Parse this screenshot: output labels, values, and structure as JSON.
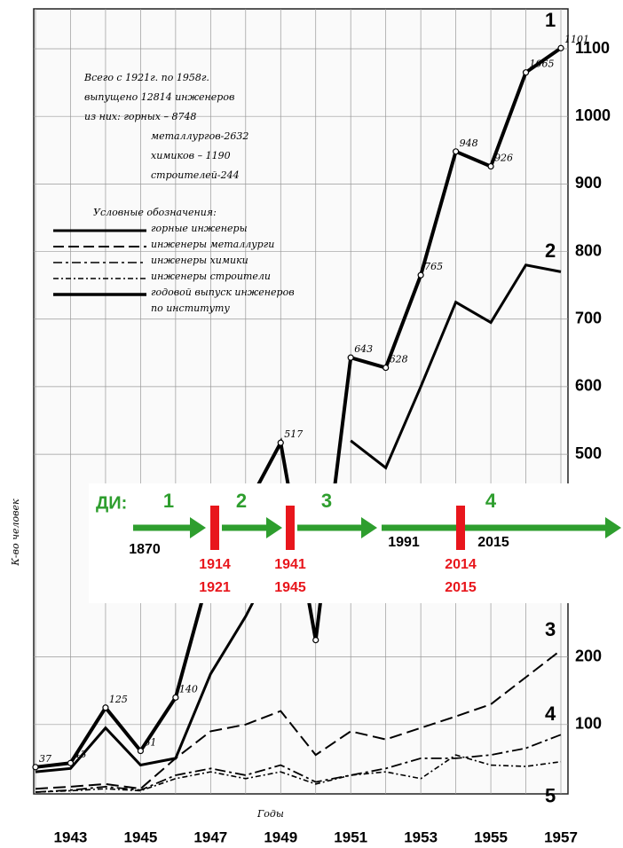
{
  "chart_data": {
    "type": "line",
    "x_label": "Годы",
    "y_label": "К-во человек",
    "x": [
      1942,
      1943,
      1944,
      1945,
      1946,
      1947,
      1948,
      1949,
      1950,
      1951,
      1952,
      1953,
      1954,
      1955,
      1956,
      1957
    ],
    "xlim": [
      1942,
      1957
    ],
    "xticks": [
      1943,
      1945,
      1947,
      1949,
      1951,
      1953,
      1955,
      1957
    ],
    "ylim": [
      0,
      1100
    ],
    "yticks": [
      100,
      200,
      500,
      600,
      700,
      800,
      900,
      1000,
      1100
    ],
    "grid": true,
    "series": [
      {
        "name": "1",
        "color": "#000000",
        "style": "markers",
        "values": [
          37,
          43,
          125,
          61,
          140,
          330,
          420,
          517,
          225,
          643,
          628,
          765,
          948,
          926,
          1065,
          1101
        ],
        "value_labels": [
          "37",
          "43",
          "125",
          "61",
          "140",
          null,
          null,
          "517",
          null,
          "643",
          "628",
          "765",
          "948",
          "926",
          "1065",
          "1101"
        ]
      },
      {
        "name": "2",
        "color": "#000000",
        "style": "solid",
        "values": [
          30,
          35,
          95,
          40,
          50,
          175,
          260,
          360,
          null,
          520,
          480,
          600,
          725,
          695,
          780,
          770
        ]
      },
      {
        "name": "3",
        "color": "#000000",
        "style": "dashed",
        "values": [
          5,
          8,
          12,
          5,
          50,
          90,
          100,
          120,
          55,
          90,
          78,
          95,
          112,
          130,
          170,
          210
        ]
      },
      {
        "name": "4",
        "color": "#000000",
        "style": "dashdot",
        "values": [
          0,
          3,
          8,
          3,
          25,
          35,
          25,
          40,
          15,
          25,
          35,
          50,
          50,
          55,
          65,
          85
        ]
      },
      {
        "name": "5",
        "color": "#000000",
        "style": "dotted",
        "values": [
          0,
          2,
          5,
          2,
          20,
          30,
          20,
          30,
          12,
          25,
          30,
          20,
          55,
          40,
          38,
          45
        ]
      }
    ],
    "note": [
      "Всего с 1921г. по 1958г.",
      "выпущено 12814 инженеров",
      "из них:   горных – 8748",
      "металлургов-2632",
      "химиков – 1190",
      "строителей-244"
    ],
    "legend_title": "Условные обозначения:",
    "legend_items": [
      "горные инженеры",
      "инженеры металлурги",
      "инженеры химики",
      "инженеры строители",
      "годовой выпуск инженеров",
      "по институту"
    ]
  },
  "overlay": {
    "label": "ДИ:",
    "periods": [
      "1",
      "2",
      "3",
      "4"
    ],
    "years": [
      "1870",
      "1991",
      "2015"
    ],
    "breaks": [
      [
        "1914",
        "1921"
      ],
      [
        "1941",
        "1945"
      ],
      [
        "2014",
        "2015"
      ]
    ]
  }
}
